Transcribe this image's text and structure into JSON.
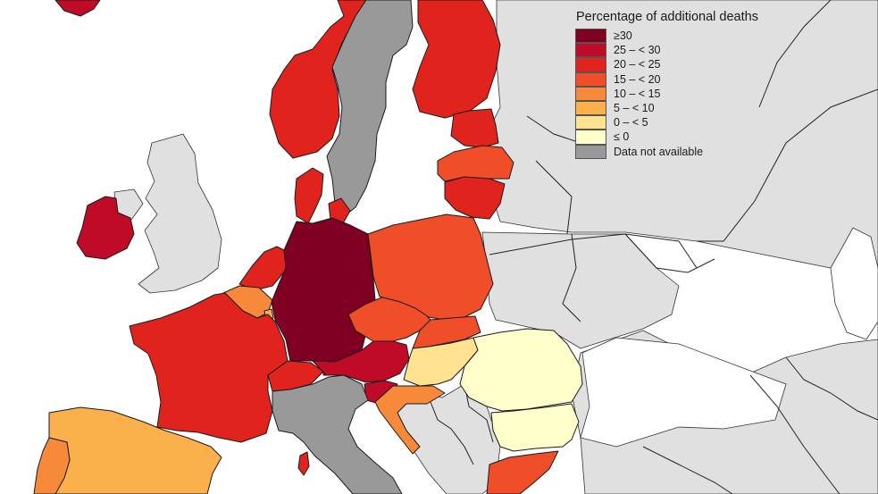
{
  "legend": {
    "title": "Percentage of additional deaths",
    "items": [
      {
        "label": "≥30",
        "color": "#7f0022"
      },
      {
        "label": "25 – < 30",
        "color": "#c00b28"
      },
      {
        "label": "20 – < 25",
        "color": "#e1231e"
      },
      {
        "label": "15 – < 20",
        "color": "#f04e28"
      },
      {
        "label": "10 – < 15",
        "color": "#f7893a"
      },
      {
        "label": "5 – < 10",
        "color": "#fcb04c"
      },
      {
        "label": "0 – < 5",
        "color": "#fee28f"
      },
      {
        "label": "≤ 0",
        "color": "#ffffcc"
      },
      {
        "label": "Data not available",
        "color": "#999999"
      }
    ]
  },
  "colors": {
    "sea": "#ffffff",
    "non_eu_land": "#e0e0e0"
  },
  "countries": [
    {
      "name": "Germany",
      "class": "≥30"
    },
    {
      "name": "Ireland",
      "class": "25 – < 30"
    },
    {
      "name": "Austria",
      "class": "25 – < 30"
    },
    {
      "name": "Slovenia",
      "class": "25 – < 30"
    },
    {
      "name": "Norway",
      "class": "20 – < 25"
    },
    {
      "name": "Finland",
      "class": "20 – < 25"
    },
    {
      "name": "Estonia",
      "class": "20 – < 25"
    },
    {
      "name": "Lithuania",
      "class": "20 – < 25"
    },
    {
      "name": "Denmark",
      "class": "20 – < 25"
    },
    {
      "name": "Netherlands",
      "class": "20 – < 25"
    },
    {
      "name": "France",
      "class": "20 – < 25"
    },
    {
      "name": "Switzerland",
      "class": "20 – < 25"
    },
    {
      "name": "Liechtenstein",
      "class": "20 – < 25"
    },
    {
      "name": "Latvia",
      "class": "15 – < 20"
    },
    {
      "name": "Poland",
      "class": "15 – < 20"
    },
    {
      "name": "Czechia",
      "class": "15 – < 20"
    },
    {
      "name": "Slovakia",
      "class": "15 – < 20"
    },
    {
      "name": "Greece",
      "class": "15 – < 20"
    },
    {
      "name": "Belgium",
      "class": "10 – < 15"
    },
    {
      "name": "Croatia",
      "class": "10 – < 15"
    },
    {
      "name": "Portugal",
      "class": "10 – < 15"
    },
    {
      "name": "Spain",
      "class": "5 – < 10"
    },
    {
      "name": "Luxembourg",
      "class": "5 – < 10"
    },
    {
      "name": "Hungary",
      "class": "0 – < 5"
    },
    {
      "name": "Romania",
      "class": "≤ 0"
    },
    {
      "name": "Bulgaria",
      "class": "≤ 0"
    },
    {
      "name": "Sweden",
      "class": "Data not available"
    },
    {
      "name": "Italy",
      "class": "Data not available"
    },
    {
      "name": "Malta",
      "class": "Data not available"
    }
  ]
}
